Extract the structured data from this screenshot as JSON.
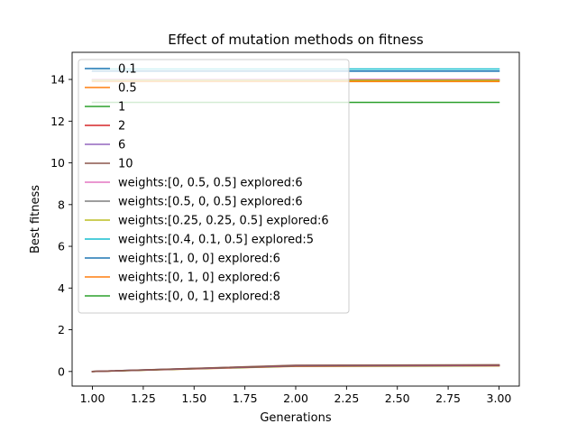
{
  "chart_data": {
    "type": "line",
    "title": "Effect of mutation methods on fitness",
    "xlabel": "Generations",
    "ylabel": "Best fitness",
    "xlim": [
      0.9,
      3.1
    ],
    "ylim": [
      -0.7,
      15.3
    ],
    "xticks": [
      1.0,
      1.25,
      1.5,
      1.75,
      2.0,
      2.25,
      2.5,
      2.75,
      3.0
    ],
    "xtick_labels": [
      "1.00",
      "1.25",
      "1.50",
      "1.75",
      "2.00",
      "2.25",
      "2.50",
      "2.75",
      "3.00"
    ],
    "yticks": [
      0,
      2,
      4,
      6,
      8,
      10,
      12,
      14
    ],
    "ytick_labels": [
      "0",
      "2",
      "4",
      "6",
      "8",
      "10",
      "12",
      "14"
    ],
    "legend_position": "upper-left",
    "series": [
      {
        "name": "0.1",
        "color": "#1f77b4",
        "x": [
          1.0,
          2.0,
          3.0
        ],
        "y": [
          0.0,
          0.28,
          0.3
        ]
      },
      {
        "name": "0.5",
        "color": "#ff7f0e",
        "x": [
          1.0,
          2.0,
          3.0
        ],
        "y": [
          0.0,
          0.25,
          0.27
        ]
      },
      {
        "name": "1",
        "color": "#2ca02c",
        "x": [
          1.0,
          2.0,
          3.0
        ],
        "y": [
          0.0,
          0.26,
          0.28
        ]
      },
      {
        "name": "2",
        "color": "#d62728",
        "x": [
          1.0,
          2.0,
          3.0
        ],
        "y": [
          0.0,
          0.27,
          0.29
        ]
      },
      {
        "name": "6",
        "color": "#9467bd",
        "x": [
          1.0,
          2.0,
          3.0
        ],
        "y": [
          0.0,
          0.28,
          0.3
        ]
      },
      {
        "name": "10",
        "color": "#8c564b",
        "x": [
          1.0,
          2.0,
          3.0
        ],
        "y": [
          0.0,
          0.3,
          0.32
        ]
      },
      {
        "name": "weights:[0, 0.5, 0.5] explored:6",
        "color": "#e377c2",
        "x": [
          1.0,
          2.0,
          3.0
        ],
        "y": [
          14.0,
          14.0,
          14.0
        ]
      },
      {
        "name": "weights:[0.5, 0, 0.5] explored:6",
        "color": "#7f7f7f",
        "x": [
          1.0,
          2.0,
          3.0
        ],
        "y": [
          13.97,
          13.97,
          13.97
        ]
      },
      {
        "name": "weights:[0.25, 0.25, 0.5] explored:6",
        "color": "#bcbd22",
        "x": [
          1.0,
          2.0,
          3.0
        ],
        "y": [
          13.95,
          13.95,
          13.95
        ]
      },
      {
        "name": "weights:[0.4, 0.1, 0.5] explored:5",
        "color": "#17becf",
        "x": [
          1.0,
          2.0,
          3.0
        ],
        "y": [
          14.5,
          14.5,
          14.5
        ]
      },
      {
        "name": "weights:[1, 0, 0] explored:6",
        "color": "#1f77b4",
        "x": [
          1.0,
          2.0,
          3.0
        ],
        "y": [
          14.4,
          14.4,
          14.4
        ]
      },
      {
        "name": "weights:[0, 1, 0] explored:6",
        "color": "#ff7f0e",
        "x": [
          1.0,
          2.0,
          3.0
        ],
        "y": [
          13.9,
          13.9,
          13.9
        ]
      },
      {
        "name": "weights:[0, 0, 1] explored:8",
        "color": "#2ca02c",
        "x": [
          1.0,
          2.0,
          3.0
        ],
        "y": [
          12.9,
          12.9,
          12.9
        ]
      }
    ]
  }
}
